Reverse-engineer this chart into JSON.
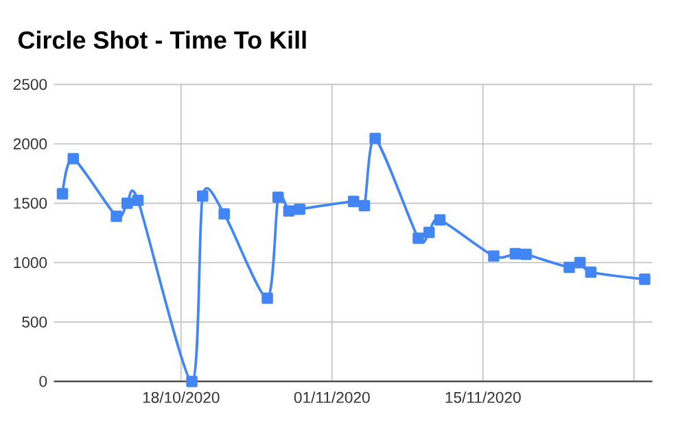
{
  "chart_data": {
    "type": "line",
    "title": "Circle Shot - Time To Kill",
    "x": [
      "2020-10-07",
      "2020-10-08",
      "2020-10-12",
      "2020-10-13",
      "2020-10-14",
      "2020-10-19",
      "2020-10-20",
      "2020-10-22",
      "2020-10-26",
      "2020-10-27",
      "2020-10-28",
      "2020-10-29",
      "2020-11-03",
      "2020-11-04",
      "2020-11-05",
      "2020-11-09",
      "2020-11-10",
      "2020-11-11",
      "2020-11-16",
      "2020-11-18",
      "2020-11-19",
      "2020-11-23",
      "2020-11-24",
      "2020-11-25",
      "2020-11-30"
    ],
    "values": [
      1580,
      1875,
      1390,
      1500,
      1525,
      0,
      1560,
      1410,
      700,
      1550,
      1435,
      1450,
      1515,
      1480,
      2045,
      1205,
      1255,
      1360,
      1055,
      1075,
      1070,
      960,
      1000,
      920,
      860
    ],
    "color": "#4285f4",
    "marker": "square",
    "xlim": [
      "2020-10-06T05:00",
      "2020-11-30T17:00"
    ],
    "xticks": [
      {
        "value": "2020-10-18",
        "label": "18/10/2020"
      },
      {
        "value": "2020-11-01",
        "label": "01/11/2020"
      },
      {
        "value": "2020-11-15",
        "label": "15/11/2020"
      },
      {
        "value": "2020-11-29",
        "label": null
      }
    ],
    "ylim": [
      0,
      2500
    ],
    "yticks": [
      0,
      500,
      1000,
      1500,
      2000,
      2500
    ],
    "grid": true
  }
}
